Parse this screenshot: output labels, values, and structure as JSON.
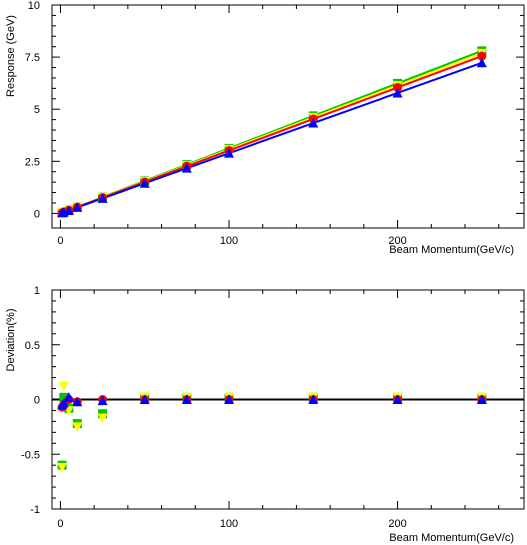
{
  "chart_data": [
    {
      "type": "scatter",
      "ylabel": "Response (GeV)",
      "xlabel": "Beam Momentum(GeV/c)",
      "xlim": [
        -5,
        275
      ],
      "ylim": [
        -0.7,
        10
      ],
      "x_ticks": [
        "0",
        "100",
        "200"
      ],
      "y_ticks": [
        "0",
        "2.5",
        "5",
        "7.5",
        "10"
      ],
      "x": [
        1,
        2,
        5,
        10,
        25,
        50,
        75,
        100,
        150,
        200,
        250
      ],
      "series": [
        {
          "color": "#00c800",
          "marker": "square",
          "fit_slope": 0.0312,
          "values": [
            0.03,
            0.06,
            0.16,
            0.31,
            0.78,
            1.56,
            2.34,
            3.12,
            4.68,
            6.24,
            7.8
          ]
        },
        {
          "color": "#ffff00",
          "marker": "triangle-down",
          "fit_slope": 0.0307,
          "values": [
            0.03,
            0.06,
            0.15,
            0.3,
            0.77,
            1.54,
            2.3,
            3.07,
            4.61,
            6.14,
            7.68
          ]
        },
        {
          "color": "#ff0000",
          "marker": "circle",
          "fit_slope": 0.0302,
          "values": [
            0.03,
            0.06,
            0.15,
            0.3,
            0.76,
            1.51,
            2.27,
            3.02,
            4.53,
            6.04,
            7.55
          ]
        },
        {
          "color": "#0000ff",
          "marker": "triangle-up",
          "fit_slope": 0.0289,
          "values": [
            0.03,
            0.06,
            0.14,
            0.29,
            0.72,
            1.45,
            2.17,
            2.89,
            4.34,
            5.78,
            7.23
          ]
        }
      ]
    },
    {
      "type": "scatter",
      "ylabel": "Deviation(%)",
      "xlabel": "Beam Momentum(GeV/c)",
      "xlim": [
        -5,
        275
      ],
      "ylim": [
        -1,
        1
      ],
      "x_ticks": [
        "0",
        "100",
        "200"
      ],
      "y_ticks": [
        "-1",
        "-0.5",
        "0",
        "0.5",
        "1"
      ],
      "zero_line": true,
      "x": [
        1,
        2,
        5,
        10,
        25,
        50,
        75,
        100,
        150,
        200,
        250
      ],
      "series": [
        {
          "color": "#00c800",
          "marker": "square",
          "values": [
            -0.6,
            0.02,
            -0.08,
            -0.22,
            -0.13,
            0.02,
            0.02,
            0.02,
            0.02,
            0.02,
            0.02
          ]
        },
        {
          "color": "#ffff00",
          "marker": "triangle-down",
          "values": [
            -0.62,
            0.12,
            -0.1,
            -0.25,
            -0.17,
            0.02,
            0.02,
            0.02,
            0.02,
            0.02,
            0.02
          ]
        },
        {
          "color": "#ff0000",
          "marker": "circle",
          "values": [
            -0.07,
            -0.05,
            0.0,
            -0.02,
            0.0,
            0.0,
            0.0,
            0.0,
            0.0,
            0.0,
            0.0
          ]
        },
        {
          "color": "#0000ff",
          "marker": "triangle-up",
          "values": [
            -0.05,
            -0.03,
            0.02,
            -0.02,
            -0.01,
            0.0,
            0.0,
            0.0,
            0.0,
            0.0,
            0.0
          ]
        }
      ]
    }
  ]
}
